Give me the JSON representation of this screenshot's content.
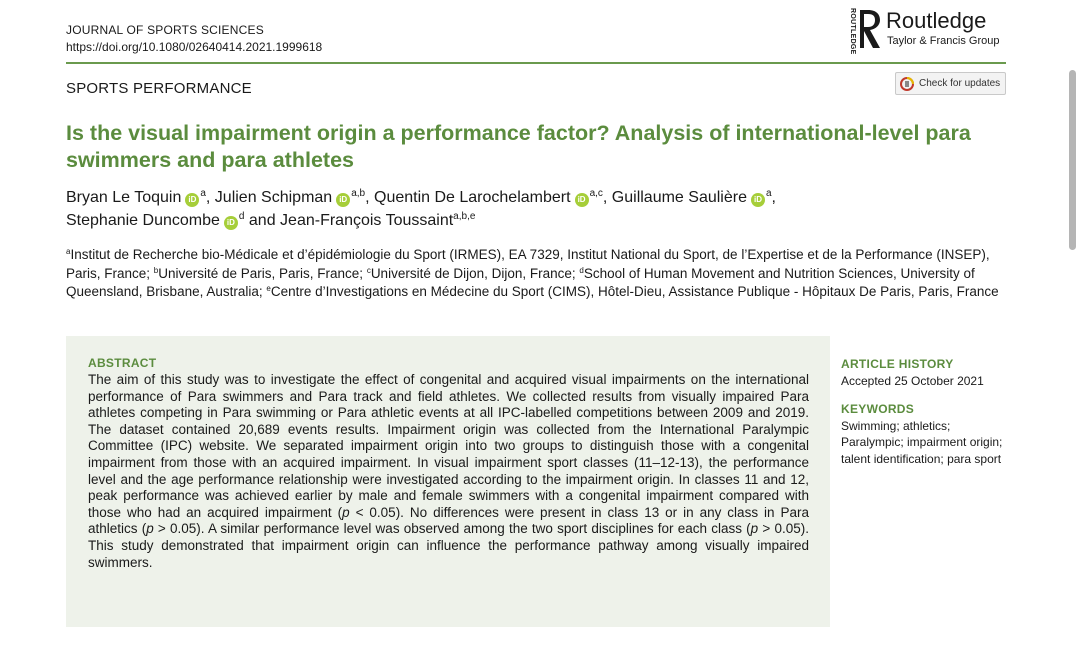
{
  "journal": {
    "name": "JOURNAL OF SPORTS SCIENCES",
    "doi": "https://doi.org/10.1080/02640414.2021.1999618"
  },
  "publisher": {
    "vertical_text": "ROUTLEDGE",
    "name": "Routledge",
    "group": "Taylor & Francis Group"
  },
  "section_label": "SPORTS PERFORMANCE",
  "check_updates_label": "Check for updates",
  "title": "Is the visual impairment origin a performance factor? Analysis of international-level para swimmers and para athletes",
  "authors": [
    {
      "name": "Bryan Le Toquin",
      "sup": "a",
      "sep": ", "
    },
    {
      "name": "Julien Schipman",
      "sup": "a,b",
      "sep": ", "
    },
    {
      "name": "Quentin De Larochelambert",
      "sup": "a,c",
      "sep": ", "
    },
    {
      "name": "Guillaume Saulière",
      "sup": "a",
      "sep": ","
    },
    {
      "name": "Stephanie Duncombe",
      "sup": "d",
      "sep": " and "
    },
    {
      "name": "Jean-François Toussaint",
      "sup": "a,b,e",
      "sep": ""
    }
  ],
  "orcid_label": "iD",
  "affiliations": [
    {
      "sup": "a",
      "text": "Institut de Recherche bio-Médicale et d’épidémiologie du Sport (IRMES), EA 7329, Institut National du Sport, de l’Expertise et de la Performance (INSEP), Paris, France; "
    },
    {
      "sup": "b",
      "text": "Université de Paris, Paris, France; "
    },
    {
      "sup": "c",
      "text": "Université de Dijon, Dijon, France; "
    },
    {
      "sup": "d",
      "text": "School of Human Movement and Nutrition Sciences, University of Queensland, Brisbane, Australia; "
    },
    {
      "sup": "e",
      "text": "Centre d’Investigations en Médecine du Sport (CIMS), Hôtel-Dieu, Assistance Publique - Hôpitaux De Paris, Paris, France"
    }
  ],
  "abstract": {
    "heading": "ABSTRACT",
    "part1": "The aim of this study was to investigate the effect of congenital and acquired visual impairments on the international performance of Para swimmers and Para track and field athletes. We collected results from visually impaired Para athletes competing in Para swimming or Para athletic events at all IPC-labelled competitions between 2009 and 2019. The dataset contained 20,689 events results. Impairment origin was collected from the International Paralympic Committee (IPC) website. We separated impairment origin into two groups to distinguish those with a congenital impairment from those with an acquired impairment. In visual impairment sport classes (11–12-13), the performance level and the age performance relationship were investigated according to the impairment origin. In classes 11 and 12, peak performance was achieved earlier by male and female swimmers with a congenital impairment compared with those who had an acquired impairment (",
    "p": "p",
    "part2": " < 0.05). No differences were present in class 13 or in any class in Para athletics (",
    "part3": " > 0.05). A similar performance level was observed among the two sport disciplines for each class (",
    "part4": " > 0.05). This study demonstrated that impairment origin can influence the performance pathway among visually impaired swimmers."
  },
  "article_history": {
    "heading": "ARTICLE HISTORY",
    "accepted": "Accepted 25 October 2021"
  },
  "keywords": {
    "heading": "KEYWORDS",
    "text": "Swimming; athletics; Paralympic; impairment origin; talent identification; para sport"
  },
  "colors": {
    "accent_green": "#5b8c3e",
    "abstract_bg": "#eef2ea",
    "orcid_green": "#a6ce39"
  }
}
